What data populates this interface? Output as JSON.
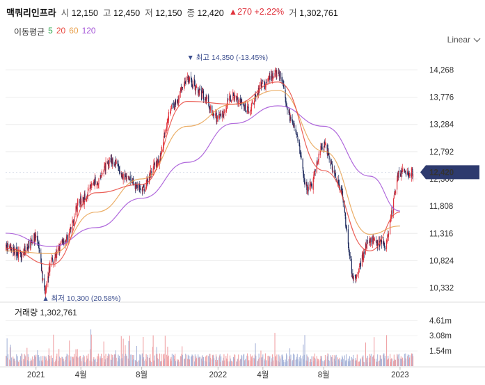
{
  "header": {
    "name": "맥쿼리인프라",
    "open_label": "시",
    "open": "12,150",
    "high_label": "고",
    "high": "12,450",
    "low_label": "저",
    "low": "12,150",
    "close_label": "종",
    "close": "12,420",
    "change_arrow": "▲",
    "change": "270",
    "change_pct": "+2.22%",
    "volume_label": "거",
    "volume": "1,302,761"
  },
  "ma_legend": {
    "label": "이동평균",
    "items": [
      {
        "period": "5",
        "color": "#2fa84f"
      },
      {
        "period": "20",
        "color": "#e8453c"
      },
      {
        "period": "60",
        "color": "#e8a04c"
      },
      {
        "period": "120",
        "color": "#a24fd6"
      }
    ]
  },
  "scale_toggle": {
    "label": "Linear"
  },
  "colors": {
    "up": "#e0313b",
    "down": "#1f2b5e",
    "current_badge": "#2d3a6e",
    "grid": "#ececec"
  },
  "chart_data": {
    "type": "candlestick",
    "price_axis": {
      "ticks": [
        14268,
        13776,
        13284,
        12792,
        12300,
        11808,
        11316,
        10824,
        10332
      ],
      "tick_labels": [
        "14,268",
        "13,776",
        "13,284",
        "12,792",
        "12,300",
        "11,808",
        "11,316",
        "10,824",
        "10,332"
      ],
      "range": [
        10150,
        14550
      ]
    },
    "time_axis": {
      "labels": [
        "2021",
        "4월",
        "8월",
        "2022",
        "4월",
        "8월",
        "2023"
      ],
      "label_dates": [
        "2021-01",
        "2021-04",
        "2021-08",
        "2022-01",
        "2022-04",
        "2022-08",
        "2023-01"
      ]
    },
    "current_price": {
      "value": 12420,
      "label": "12,420"
    },
    "high_annotation": {
      "value": 14350,
      "text": "▼ 최고 14,350 (-13.45%)"
    },
    "low_annotation": {
      "value": 10300,
      "text": "▲ 최저 10,300 (20.58%)"
    },
    "close_path": [
      {
        "date": "2020-11",
        "price": 11050
      },
      {
        "date": "2020-12",
        "price": 10950
      },
      {
        "date": "2021-01",
        "price": 11250
      },
      {
        "date": "2021-01-20",
        "price": 10300
      },
      {
        "date": "2021-02",
        "price": 10850
      },
      {
        "date": "2021-03",
        "price": 11200
      },
      {
        "date": "2021-04",
        "price": 11900
      },
      {
        "date": "2021-05",
        "price": 12250
      },
      {
        "date": "2021-06",
        "price": 12650
      },
      {
        "date": "2021-07",
        "price": 12300
      },
      {
        "date": "2021-08",
        "price": 12100
      },
      {
        "date": "2021-09",
        "price": 12600
      },
      {
        "date": "2021-10",
        "price": 13600
      },
      {
        "date": "2021-11",
        "price": 14100
      },
      {
        "date": "2021-12",
        "price": 13800
      },
      {
        "date": "2022-01",
        "price": 13400
      },
      {
        "date": "2022-02",
        "price": 13800
      },
      {
        "date": "2022-03",
        "price": 13550
      },
      {
        "date": "2022-04",
        "price": 14000
      },
      {
        "date": "2022-05",
        "price": 14200
      },
      {
        "date": "2022-06",
        "price": 13300
      },
      {
        "date": "2022-07",
        "price": 12100
      },
      {
        "date": "2022-08",
        "price": 12900
      },
      {
        "date": "2022-09",
        "price": 12200
      },
      {
        "date": "2022-10",
        "price": 10500
      },
      {
        "date": "2022-11",
        "price": 11200
      },
      {
        "date": "2022-12",
        "price": 11100
      },
      {
        "date": "2023-01",
        "price": 12420
      }
    ],
    "moving_averages": [
      {
        "name": "120",
        "points": [
          {
            "date": "2020-11",
            "price": 11320
          },
          {
            "date": "2021-02",
            "price": 11080
          },
          {
            "date": "2021-05",
            "price": 11420
          },
          {
            "date": "2021-08",
            "price": 11950
          },
          {
            "date": "2021-11",
            "price": 12600
          },
          {
            "date": "2022-02",
            "price": 13300
          },
          {
            "date": "2022-05",
            "price": 13620
          },
          {
            "date": "2022-08",
            "price": 13250
          },
          {
            "date": "2022-11",
            "price": 12350
          },
          {
            "date": "2023-01",
            "price": 11720
          }
        ]
      },
      {
        "name": "60",
        "points": [
          {
            "date": "2020-11",
            "price": 11000
          },
          {
            "date": "2021-02",
            "price": 10950
          },
          {
            "date": "2021-05",
            "price": 11700
          },
          {
            "date": "2021-08",
            "price": 12300
          },
          {
            "date": "2021-11",
            "price": 13250
          },
          {
            "date": "2022-02",
            "price": 13650
          },
          {
            "date": "2022-05",
            "price": 13900
          },
          {
            "date": "2022-08",
            "price": 12800
          },
          {
            "date": "2022-11",
            "price": 11300
          },
          {
            "date": "2023-01",
            "price": 11450
          }
        ]
      },
      {
        "name": "20",
        "points": [
          {
            "date": "2020-11",
            "price": 11050
          },
          {
            "date": "2021-02",
            "price": 10750
          },
          {
            "date": "2021-05",
            "price": 12050
          },
          {
            "date": "2021-08",
            "price": 12200
          },
          {
            "date": "2021-11",
            "price": 13700
          },
          {
            "date": "2022-02",
            "price": 13650
          },
          {
            "date": "2022-05",
            "price": 14050
          },
          {
            "date": "2022-08",
            "price": 12450
          },
          {
            "date": "2022-11",
            "price": 11000
          },
          {
            "date": "2023-01",
            "price": 11700
          }
        ]
      }
    ],
    "volume": {
      "title_label": "거래량",
      "title_value": "1,302,761",
      "ticks": [
        "4.61m",
        "3.08m",
        "1.54m"
      ],
      "tick_values": [
        4610000,
        3080000,
        1540000
      ],
      "range": [
        0,
        5200000
      ]
    }
  }
}
